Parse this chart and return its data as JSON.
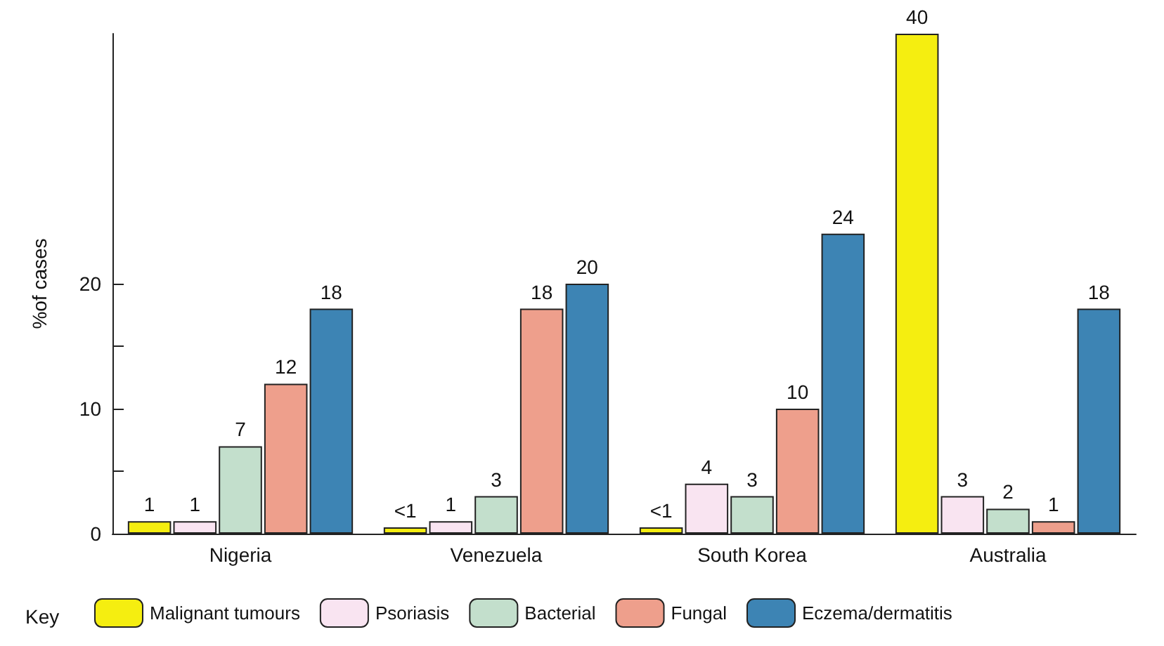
{
  "chart_data": {
    "type": "bar",
    "ylabel": "%of cases",
    "legend_title": "Key",
    "legend": "bottom",
    "grid": false,
    "categories": [
      "Nigeria",
      "Venezuela",
      "South Korea",
      "Australia"
    ],
    "ylim": [
      0,
      40
    ],
    "yticks": [
      0,
      {
        "value": 5,
        "label": null
      },
      10,
      {
        "value": 15,
        "label": null
      },
      20
    ],
    "series": [
      {
        "name": "Malignant tumours",
        "color": "#f5ee10",
        "values": [
          1,
          0.5,
          0.5,
          40
        ],
        "value_labels": [
          "1",
          "<1",
          "<1",
          "40"
        ]
      },
      {
        "name": "Psoriasis",
        "color": "#f9e4f1",
        "values": [
          1,
          1,
          4,
          3
        ],
        "value_labels": [
          "1",
          "1",
          "4",
          "3"
        ]
      },
      {
        "name": "Bacterial",
        "color": "#c3dfcc",
        "values": [
          7,
          3,
          3,
          2
        ],
        "value_labels": [
          "7",
          "3",
          "3",
          "2"
        ]
      },
      {
        "name": "Fungal",
        "color": "#ee9f8c",
        "values": [
          12,
          18,
          10,
          1
        ],
        "value_labels": [
          "12",
          "18",
          "10",
          "1"
        ]
      },
      {
        "name": "Eczema/dermatitis",
        "color": "#3d84b4",
        "values": [
          18,
          20,
          24,
          18
        ],
        "value_labels": [
          "18",
          "20",
          "24",
          "18"
        ]
      }
    ]
  }
}
